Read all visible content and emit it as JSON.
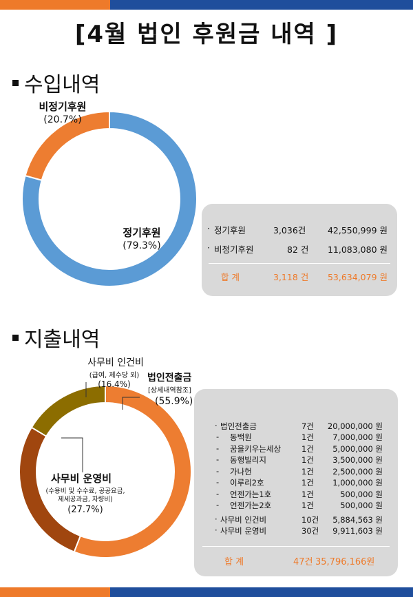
{
  "title": "[4월 법인 후원금 내역 ]",
  "income": {
    "heading": "수입내역",
    "items": [
      {
        "bullet": "·",
        "label": "정기후원",
        "count": "3,036건",
        "amount": "42,550,999 원"
      },
      {
        "bullet": "·",
        "label": "비정기후원",
        "count": "82 건",
        "amount": "11,083,080 원"
      }
    ],
    "total": {
      "label": "합   계",
      "count": "3,118 건",
      "amount": "53,634,079 원"
    }
  },
  "expense": {
    "heading": "지출내역",
    "items": [
      {
        "bullet": "·",
        "label": "법인전출금",
        "count": "7건",
        "amount": "20,000,000 원"
      },
      {
        "bullet": "-",
        "label": "동백원",
        "count": "1건",
        "amount": "7,000,000 원"
      },
      {
        "bullet": "-",
        "label": "꿈을키우는세상",
        "count": "1건",
        "amount": "5,000,000 원"
      },
      {
        "bullet": "-",
        "label": "동행빌리지",
        "count": "1건",
        "amount": "3,500,000 원"
      },
      {
        "bullet": "-",
        "label": "가나헌",
        "count": "1건",
        "amount": "2,500,000 원"
      },
      {
        "bullet": "-",
        "label": "이루리2호",
        "count": "1건",
        "amount": "1,000,000 원"
      },
      {
        "bullet": "-",
        "label": "언젠가는1호",
        "count": "1건",
        "amount": "500,000 원"
      },
      {
        "bullet": "-",
        "label": "언젠가는2호",
        "count": "1건",
        "amount": "500,000 원"
      },
      {
        "bullet": "·",
        "label": "사무비 인건비",
        "count": "10건",
        "amount": "5,884,563 원"
      },
      {
        "bullet": "·",
        "label": "사무비 운영비",
        "count": "30건",
        "amount": "9,911,603 원"
      }
    ],
    "total": {
      "label": "합   계",
      "count": "47건",
      "amount": "35,796,166원"
    }
  },
  "chart_data": [
    {
      "type": "pie",
      "variant": "donut",
      "slices": [
        {
          "name": "정기후원",
          "percent_label": "(79.3%)",
          "value": 79.3,
          "color": "#5b9bd5"
        },
        {
          "name": "비정기후원",
          "percent_label": "(20.7%)",
          "value": 20.7,
          "color": "#ed7d31"
        }
      ]
    },
    {
      "type": "pie",
      "variant": "donut",
      "slices": [
        {
          "name": "법인전출금",
          "sublabel": "[상세내역참조]",
          "percent_label": "(55.9%)",
          "value": 55.9,
          "color": "#ed7d31"
        },
        {
          "name": "사무비 운영비",
          "sublabel": "(수용비 및 수수료, 공공요금,\n제세공과금, 차량비)",
          "percent_label": "(27.7%)",
          "value": 27.7,
          "color": "#a0460f"
        },
        {
          "name": "사무비 인건비",
          "sublabel": "(급여, 제수당 외)",
          "percent_label": "(16.4%)",
          "value": 16.4,
          "color": "#8c6d00"
        }
      ]
    }
  ],
  "colors": {
    "accent_orange": "#ee7a2a",
    "accent_blue": "#1f4e9c",
    "box_gray": "#d9d9d9"
  }
}
